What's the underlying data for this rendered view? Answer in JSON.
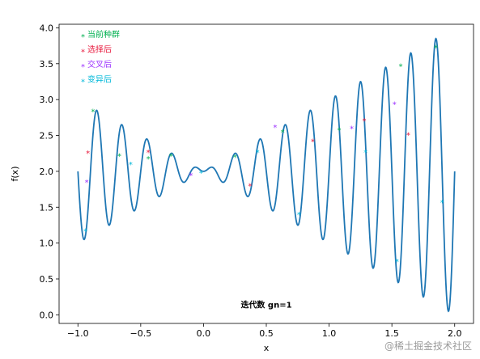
{
  "chart_data": {
    "type": "line",
    "title": "",
    "xlabel": "x",
    "ylabel": "f(x)",
    "xlim": [
      -1.15,
      2.15
    ],
    "ylim": [
      -0.12,
      4.05
    ],
    "x_ticks": [
      -1.0,
      -0.5,
      0.0,
      0.5,
      1.0,
      1.5,
      2.0
    ],
    "x_tick_labels": [
      "−1.0",
      "−0.5",
      "0.0",
      "0.5",
      "1.0",
      "1.5",
      "2.0"
    ],
    "y_ticks": [
      0.0,
      0.5,
      1.0,
      1.5,
      2.0,
      2.5,
      3.0,
      3.5,
      4.0
    ],
    "y_tick_labels": [
      "0.0",
      "0.5",
      "1.0",
      "1.5",
      "2.0",
      "2.5",
      "3.0",
      "3.5",
      "4.0"
    ],
    "grid": false,
    "legend_position": "top-left",
    "series": [
      {
        "name": "",
        "kind": "line",
        "color": "#1f77b4",
        "function_expression": "x*sin(10*pi*x)+2",
        "x_range": [
          -1.0,
          2.0
        ]
      },
      {
        "name": "当前种群",
        "kind": "marker",
        "marker": "*",
        "color": "#00b050",
        "points": [
          [
            -0.88,
            2.84
          ],
          [
            -0.67,
            2.22
          ],
          [
            -0.44,
            2.18
          ],
          [
            -0.26,
            2.22
          ],
          [
            0.25,
            2.2
          ],
          [
            0.63,
            2.55
          ],
          [
            1.08,
            2.58
          ],
          [
            1.57,
            3.47
          ],
          [
            1.85,
            3.73
          ]
        ]
      },
      {
        "name": "选择后",
        "kind": "marker",
        "marker": "*",
        "color": "#e8183c",
        "points": [
          [
            -0.92,
            2.26
          ],
          [
            -0.44,
            2.27
          ],
          [
            0.37,
            1.8
          ],
          [
            0.87,
            2.42
          ],
          [
            1.28,
            2.71
          ],
          [
            1.63,
            2.51
          ]
        ]
      },
      {
        "name": "交叉后",
        "kind": "marker",
        "marker": "*",
        "color": "#9b30ff",
        "points": [
          [
            -0.93,
            1.85
          ],
          [
            -0.1,
            1.95
          ],
          [
            0.57,
            2.62
          ],
          [
            1.18,
            2.6
          ],
          [
            1.52,
            2.94
          ]
        ]
      },
      {
        "name": "变异后",
        "kind": "marker",
        "marker": "*",
        "color": "#00b8d9",
        "points": [
          [
            -0.94,
            1.17
          ],
          [
            -0.58,
            2.1
          ],
          [
            -0.02,
            1.98
          ],
          [
            0.43,
            2.27
          ],
          [
            0.76,
            1.4
          ],
          [
            1.29,
            2.27
          ],
          [
            1.54,
            0.75
          ],
          [
            1.9,
            1.57
          ]
        ]
      }
    ],
    "annotations": [
      {
        "text": "迭代数 gn=1",
        "x": 0.5,
        "y": 0.1
      }
    ]
  },
  "watermark": "@稀土掘金技术社区"
}
